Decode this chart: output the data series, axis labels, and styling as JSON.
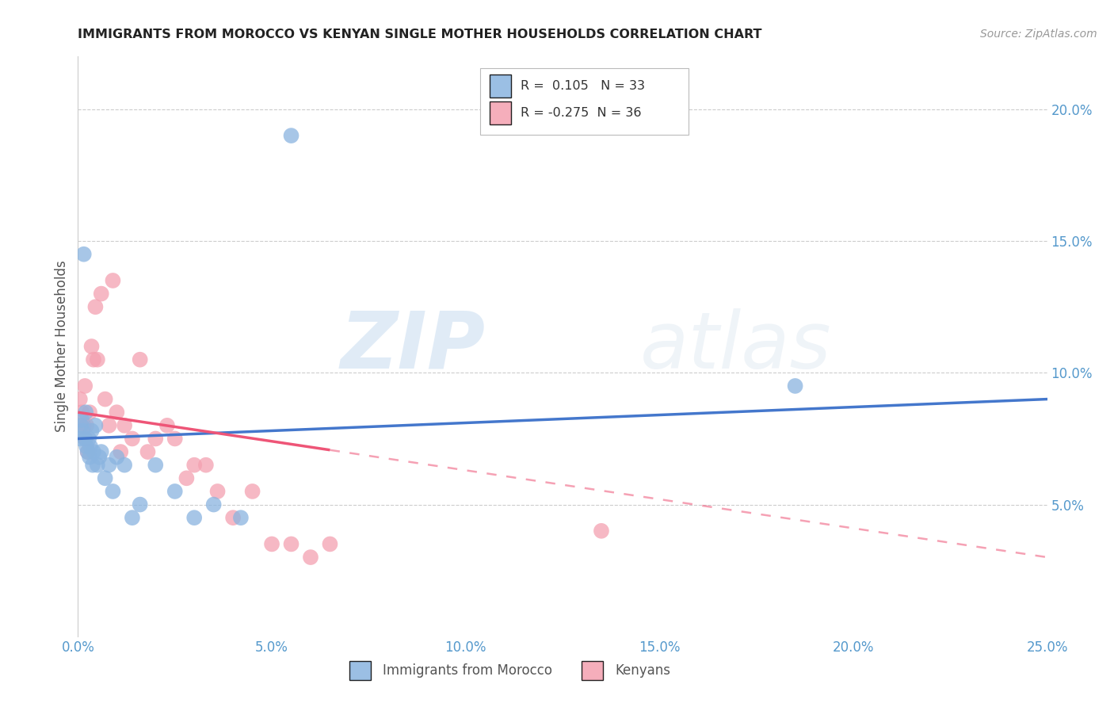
{
  "title": "IMMIGRANTS FROM MOROCCO VS KENYAN SINGLE MOTHER HOUSEHOLDS CORRELATION CHART",
  "source": "Source: ZipAtlas.com",
  "xlabel_vals": [
    0.0,
    5.0,
    10.0,
    15.0,
    20.0,
    25.0
  ],
  "ylabel": "Single Mother Households",
  "ylabel_vals": [
    5.0,
    10.0,
    15.0,
    20.0
  ],
  "legend_label1": "Immigrants from Morocco",
  "legend_label2": "Kenyans",
  "R1": 0.105,
  "N1": 33,
  "R2": -0.275,
  "N2": 36,
  "blue_color": "#8AB4E0",
  "pink_color": "#F4A0B0",
  "blue_line_color": "#4477CC",
  "pink_line_color": "#EE5577",
  "watermark_zip": "ZIP",
  "watermark_atlas": "atlas",
  "xlim": [
    0.0,
    25.0
  ],
  "ylim": [
    0.0,
    22.0
  ],
  "blue_dots_x": [
    0.05,
    0.08,
    0.1,
    0.12,
    0.15,
    0.18,
    0.2,
    0.22,
    0.25,
    0.28,
    0.3,
    0.32,
    0.35,
    0.38,
    0.4,
    0.45,
    0.5,
    0.55,
    0.6,
    0.7,
    0.8,
    0.9,
    1.0,
    1.2,
    1.4,
    1.6,
    2.0,
    2.5,
    3.0,
    3.5,
    4.2,
    5.5,
    18.5
  ],
  "blue_dots_y": [
    7.5,
    8.0,
    8.2,
    7.8,
    14.5,
    7.5,
    8.5,
    7.2,
    7.0,
    7.5,
    6.8,
    7.2,
    7.8,
    6.5,
    7.0,
    8.0,
    6.5,
    6.8,
    7.0,
    6.0,
    6.5,
    5.5,
    6.8,
    6.5,
    4.5,
    5.0,
    6.5,
    5.5,
    4.5,
    5.0,
    4.5,
    19.0,
    9.5
  ],
  "pink_dots_x": [
    0.05,
    0.1,
    0.15,
    0.18,
    0.2,
    0.22,
    0.25,
    0.3,
    0.35,
    0.4,
    0.45,
    0.5,
    0.6,
    0.7,
    0.8,
    0.9,
    1.0,
    1.1,
    1.2,
    1.4,
    1.6,
    1.8,
    2.0,
    2.3,
    2.5,
    2.8,
    3.0,
    3.3,
    3.6,
    4.0,
    4.5,
    5.0,
    5.5,
    6.0,
    6.5,
    13.5
  ],
  "pink_dots_y": [
    9.0,
    8.5,
    8.0,
    9.5,
    7.5,
    8.0,
    7.0,
    8.5,
    11.0,
    10.5,
    12.5,
    10.5,
    13.0,
    9.0,
    8.0,
    13.5,
    8.5,
    7.0,
    8.0,
    7.5,
    10.5,
    7.0,
    7.5,
    8.0,
    7.5,
    6.0,
    6.5,
    6.5,
    5.5,
    4.5,
    5.5,
    3.5,
    3.5,
    3.0,
    3.5,
    4.0
  ],
  "blue_line_x0": 0.0,
  "blue_line_y0": 7.5,
  "blue_line_x1": 25.0,
  "blue_line_y1": 9.0,
  "pink_line_x0": 0.0,
  "pink_line_y0": 8.5,
  "pink_line_x1": 25.0,
  "pink_line_y1": 3.0,
  "pink_solid_end_x": 6.5
}
